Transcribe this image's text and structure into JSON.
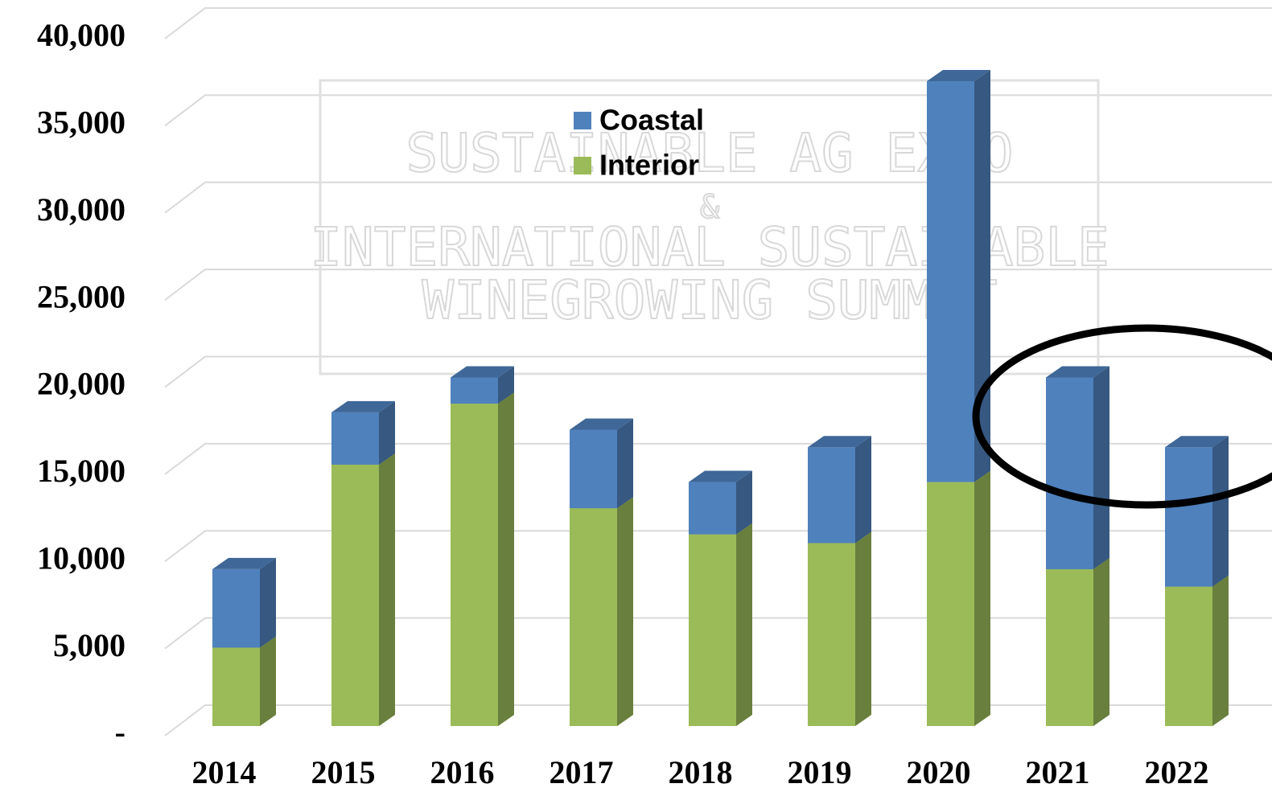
{
  "chart_data": {
    "type": "bar",
    "categories": [
      "2014",
      "2015",
      "2016",
      "2017",
      "2018",
      "2019",
      "2020",
      "2021",
      "2022"
    ],
    "series": [
      {
        "name": "Coastal",
        "color": "#4f81bd",
        "values": [
          4500,
          3000,
          1500,
          4500,
          3000,
          5500,
          23000,
          11000,
          8000
        ]
      },
      {
        "name": "Interior",
        "color": "#9bbb59",
        "values": [
          4500,
          15000,
          18500,
          12500,
          11000,
          10500,
          14000,
          9000,
          8000
        ]
      }
    ],
    "stacked": true,
    "ylim": [
      0,
      40000
    ],
    "yticks": [
      {
        "value": 0,
        "label": "-"
      },
      {
        "value": 5000,
        "label": "5,000"
      },
      {
        "value": 10000,
        "label": "10,000"
      },
      {
        "value": 15000,
        "label": "15,000"
      },
      {
        "value": 20000,
        "label": "20,000"
      },
      {
        "value": 25000,
        "label": "25,000"
      },
      {
        "value": 30000,
        "label": "30,000"
      },
      {
        "value": 35000,
        "label": "35,000"
      },
      {
        "value": 40000,
        "label": "40,000"
      }
    ],
    "grid": true,
    "annotations": [
      "SUSTAINABLE AG EXPO",
      "&",
      "INTERNATIONAL SUSTAINABLE",
      "WINEGROWING SUMMIT"
    ]
  }
}
